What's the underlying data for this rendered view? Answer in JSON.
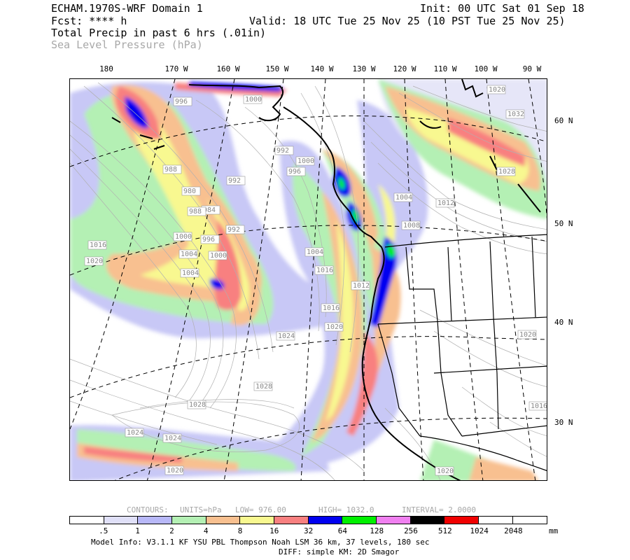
{
  "header": {
    "line1_left": "ECHAM.1970S-WRF Domain 1",
    "line1_right": "Init: 00 UTC Sat 01 Sep 18",
    "line2_left": "Fcst: **** h",
    "line2_right": "Valid: 18 UTC Tue 25 Nov 25 (10 PST Tue 25 Nov 25)",
    "field1": "Total Precip in past 6 hrs (.01in)",
    "field2": "Sea Level Pressure (hPa)"
  },
  "top_longitudes": [
    "180",
    "170 W",
    "160 W",
    "150 W",
    "140 W",
    "130 W",
    "120 W",
    "110 W",
    "100 W",
    "90 W"
  ],
  "right_latitudes": [
    "60 N",
    "50 N",
    "40 N",
    "30 N"
  ],
  "pressure_labels": [
    "996",
    "1000",
    "992",
    "988",
    "980",
    "984",
    "992",
    "992",
    "988",
    "996",
    "1000",
    "1004",
    "1000",
    "1004",
    "1016",
    "1020",
    "996",
    "1000",
    "1004",
    "1012",
    "1008",
    "1004",
    "1016",
    "1012",
    "1016",
    "1020",
    "1024",
    "1028",
    "1028",
    "1024",
    "1024",
    "1020",
    "1020",
    "1020",
    "1016",
    "1028",
    "1032",
    "1020"
  ],
  "contours_line": {
    "contours": "CONTOURS:",
    "units": "UNITS=hPa",
    "low": "LOW=  976.00",
    "high": "HIGH=  1032.0",
    "interval": "INTERVAL=   2.0000"
  },
  "colorbar": {
    "colors": [
      "#ffffff",
      "#e0e0f8",
      "#b8b8f8",
      "#b4f0b4",
      "#f8c090",
      "#f8f890",
      "#f88080",
      "#0000f0",
      "#00f000",
      "#f080f0",
      "#000000",
      "#f00000",
      "#ffffff",
      "#ffffff"
    ],
    "labels": [
      ".5",
      "1",
      "2",
      "4",
      "8",
      "16",
      "32",
      "64",
      "128",
      "256",
      "512",
      "1024",
      "2048"
    ],
    "unit": "mm"
  },
  "footer": {
    "line1": "Model Info: V3.1.1    KF       YSU PBL   Thompson     Noah LSM  36 km,    37 levels,  180 sec",
    "line2": "DIFF: simple KM: 2D Smagor"
  }
}
